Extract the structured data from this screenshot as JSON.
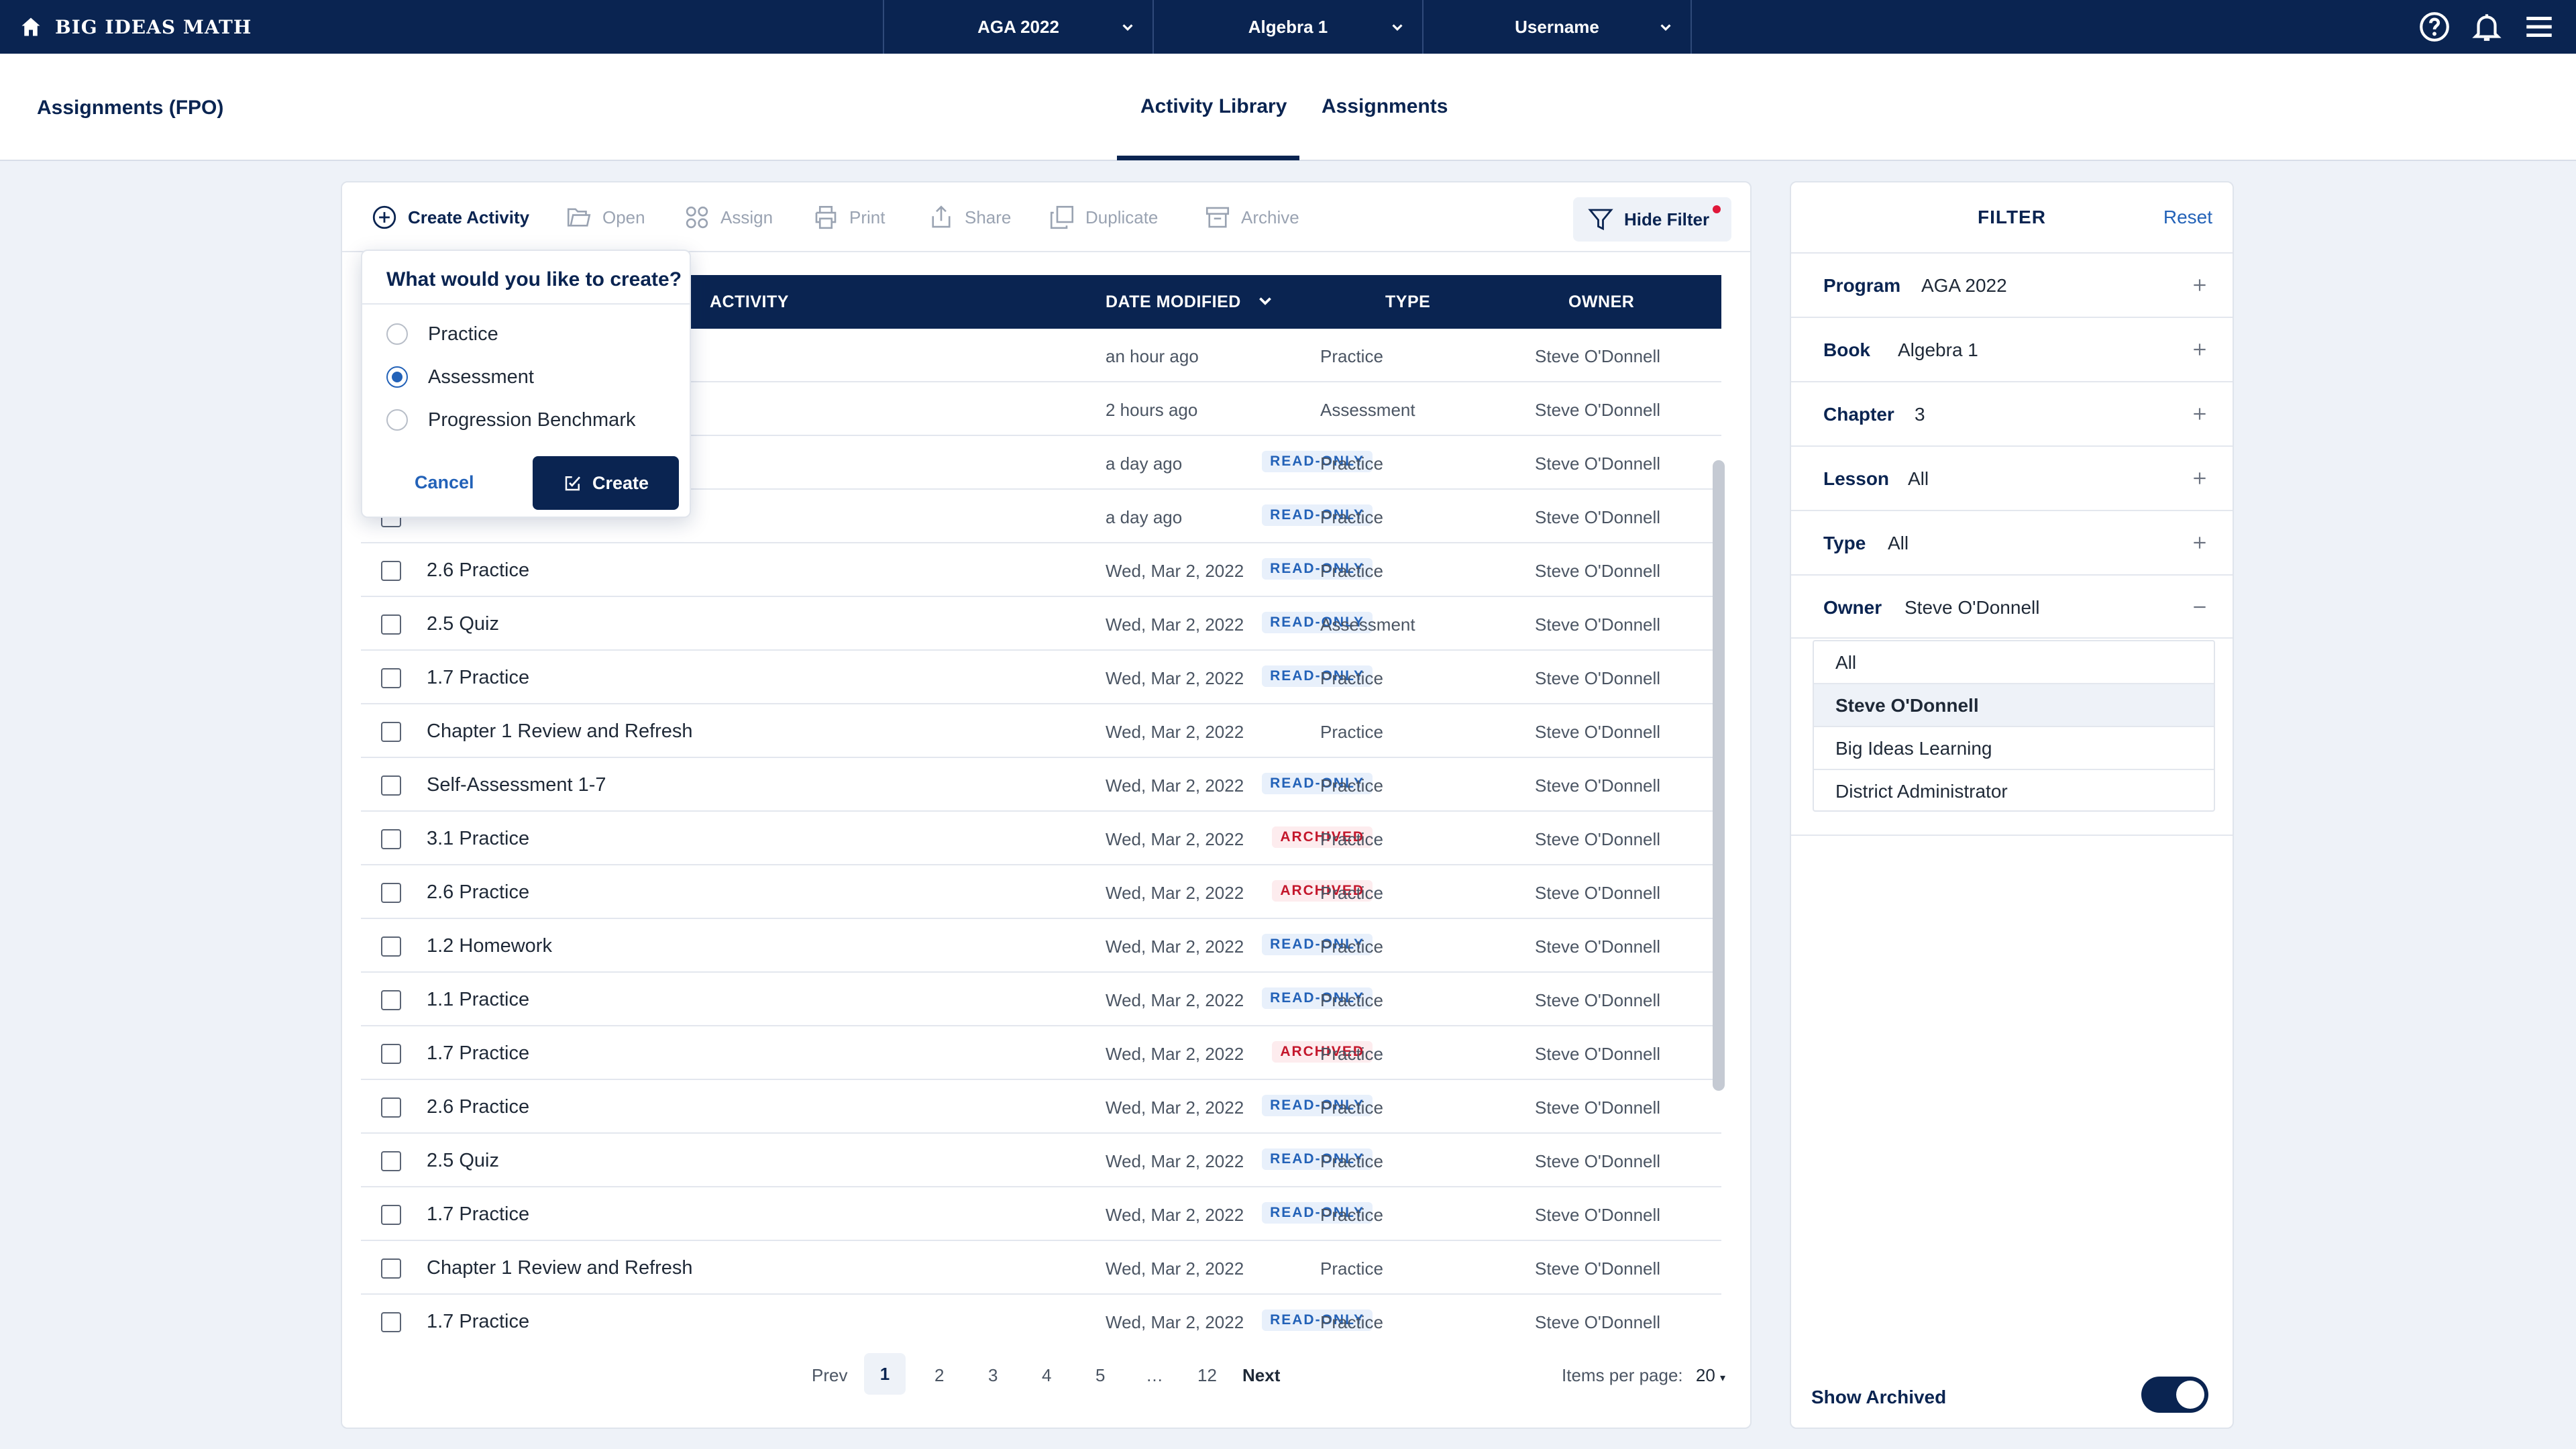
{
  "brand": {
    "name": "BIG IDEAS MATH"
  },
  "topbar": {
    "selectors": [
      {
        "label": "AGA 2022"
      },
      {
        "label": "Algebra 1"
      },
      {
        "label": "Username"
      }
    ]
  },
  "subheader": {
    "title": "Assignments (FPO)",
    "tabs": [
      {
        "label": "Activity Library",
        "active": true
      },
      {
        "label": "Assignments",
        "active": false
      }
    ]
  },
  "toolbar": {
    "create_activity": "Create Activity",
    "open": "Open",
    "assign": "Assign",
    "print": "Print",
    "share": "Share",
    "duplicate": "Duplicate",
    "archive": "Archive",
    "hide_filter": "Hide Filter"
  },
  "table": {
    "columns": {
      "activity": "ACTIVITY",
      "date": "DATE MODIFIED",
      "type": "TYPE",
      "owner": "OWNER"
    },
    "rows": [
      {
        "name": "",
        "badge": "",
        "date": "an hour ago",
        "type": "Practice",
        "owner": "Steve O'Donnell"
      },
      {
        "name": "",
        "badge": "",
        "date": "2 hours ago",
        "type": "Assessment",
        "owner": "Steve O'Donnell"
      },
      {
        "name": "",
        "badge": "READ-ONLY",
        "date": "a day ago",
        "type": "Practice",
        "owner": "Steve O'Donnell"
      },
      {
        "name": "",
        "badge": "READ-ONLY",
        "date": "a day ago",
        "type": "Practice",
        "owner": "Steve O'Donnell"
      },
      {
        "name": "2.6 Practice",
        "badge": "READ-ONLY",
        "date": "Wed, Mar 2, 2022",
        "type": "Practice",
        "owner": "Steve O'Donnell"
      },
      {
        "name": "2.5 Quiz",
        "badge": "READ-ONLY",
        "date": "Wed, Mar 2, 2022",
        "type": "Assessment",
        "owner": "Steve O'Donnell"
      },
      {
        "name": "1.7 Practice",
        "badge": "READ-ONLY",
        "date": "Wed, Mar 2, 2022",
        "type": "Practice",
        "owner": "Steve O'Donnell"
      },
      {
        "name": "Chapter 1 Review and Refresh",
        "badge": "",
        "date": "Wed, Mar 2, 2022",
        "type": "Practice",
        "owner": "Steve O'Donnell"
      },
      {
        "name": "Self-Assessment 1-7",
        "badge": "READ-ONLY",
        "date": "Wed, Mar 2, 2022",
        "type": "Practice",
        "owner": "Steve O'Donnell"
      },
      {
        "name": "3.1 Practice",
        "badge": "ARCHIVED",
        "date": "Wed, Mar 2, 2022",
        "type": "Practice",
        "owner": "Steve O'Donnell"
      },
      {
        "name": "2.6 Practice",
        "badge": "ARCHIVED",
        "date": "Wed, Mar 2, 2022",
        "type": "Practice",
        "owner": "Steve O'Donnell"
      },
      {
        "name": "1.2 Homework",
        "badge": "READ-ONLY",
        "date": "Wed, Mar 2, 2022",
        "type": "Practice",
        "owner": "Steve O'Donnell"
      },
      {
        "name": "1.1 Practice",
        "badge": "READ-ONLY",
        "date": "Wed, Mar 2, 2022",
        "type": "Practice",
        "owner": "Steve O'Donnell"
      },
      {
        "name": "1.7 Practice",
        "badge": "ARCHIVED",
        "date": "Wed, Mar 2, 2022",
        "type": "Practice",
        "owner": "Steve O'Donnell"
      },
      {
        "name": "2.6 Practice",
        "badge": "READ-ONLY",
        "date": "Wed, Mar 2, 2022",
        "type": "Practice",
        "owner": "Steve O'Donnell"
      },
      {
        "name": "2.5 Quiz",
        "badge": "READ-ONLY",
        "date": "Wed, Mar 2, 2022",
        "type": "Practice",
        "owner": "Steve O'Donnell"
      },
      {
        "name": "1.7 Practice",
        "badge": "READ-ONLY",
        "date": "Wed, Mar 2, 2022",
        "type": "Practice",
        "owner": "Steve O'Donnell"
      },
      {
        "name": "Chapter 1 Review and Refresh",
        "badge": "",
        "date": "Wed, Mar 2, 2022",
        "type": "Practice",
        "owner": "Steve O'Donnell"
      },
      {
        "name": "1.7 Practice",
        "badge": "READ-ONLY",
        "date": "Wed, Mar 2, 2022",
        "type": "Practice",
        "owner": "Steve O'Donnell"
      }
    ]
  },
  "popover": {
    "question": "What would you like to create?",
    "options": [
      {
        "label": "Practice",
        "selected": false
      },
      {
        "label": "Assessment",
        "selected": true
      },
      {
        "label": "Progression Benchmark",
        "selected": false
      }
    ],
    "cancel": "Cancel",
    "create": "Create"
  },
  "pagination": {
    "prev": "Prev",
    "pages": [
      "1",
      "2",
      "3",
      "4",
      "5",
      "…",
      "12"
    ],
    "current": "1",
    "next": "Next",
    "items_per_page_label": "Items per page:",
    "items_per_page_value": "20"
  },
  "filter": {
    "title": "FILTER",
    "reset": "Reset",
    "rows": [
      {
        "label": "Program",
        "value": "AGA 2022",
        "expanded": false
      },
      {
        "label": "Book",
        "value": "Algebra 1",
        "expanded": false
      },
      {
        "label": "Chapter",
        "value": "3",
        "expanded": false
      },
      {
        "label": "Lesson",
        "value": "All",
        "expanded": false
      },
      {
        "label": "Type",
        "value": "All",
        "expanded": false
      },
      {
        "label": "Owner",
        "value": "Steve O'Donnell",
        "expanded": true
      }
    ],
    "owner_options": [
      {
        "label": "All",
        "selected": false
      },
      {
        "label": "Steve O'Donnell",
        "selected": true
      },
      {
        "label": "Big Ideas Learning",
        "selected": false
      },
      {
        "label": "District Administrator",
        "selected": false
      }
    ],
    "show_archived": "Show Archived",
    "show_archived_on": true
  },
  "colors": {
    "navy": "#0a2451",
    "accent_blue": "#2362b8",
    "archived_red": "#c4172c",
    "background": "#eef2f8"
  },
  "icons": [
    "home-icon",
    "chevron-down-icon",
    "help-icon",
    "bell-icon",
    "menu-icon",
    "plus-circle-icon",
    "folder-icon",
    "assign-icon",
    "printer-icon",
    "share-icon",
    "duplicate-icon",
    "archive-icon",
    "filter-icon",
    "checkbox-edit-icon",
    "plus-icon",
    "minus-icon"
  ]
}
